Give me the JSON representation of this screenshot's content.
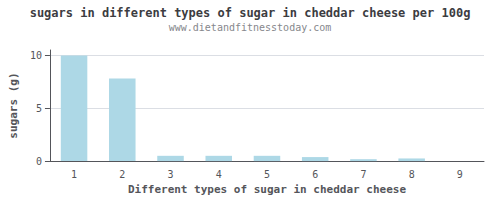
{
  "chart_data": {
    "type": "bar",
    "title": "sugars in different types of sugar in cheddar cheese per 100g",
    "subtitle": "www.dietandfitnesstoday.com",
    "xlabel": "Different types of sugar in cheddar cheese",
    "ylabel": "sugars (g)",
    "categories": [
      1,
      2,
      3,
      4,
      5,
      6,
      7,
      8,
      9
    ],
    "values": [
      9.97,
      7.8,
      0.5,
      0.5,
      0.5,
      0.38,
      0.18,
      0.25,
      0.0
    ],
    "color": "#add8e6",
    "ylim": [
      0,
      10.5
    ],
    "yticks": [
      0,
      5,
      10
    ],
    "grid": true
  }
}
